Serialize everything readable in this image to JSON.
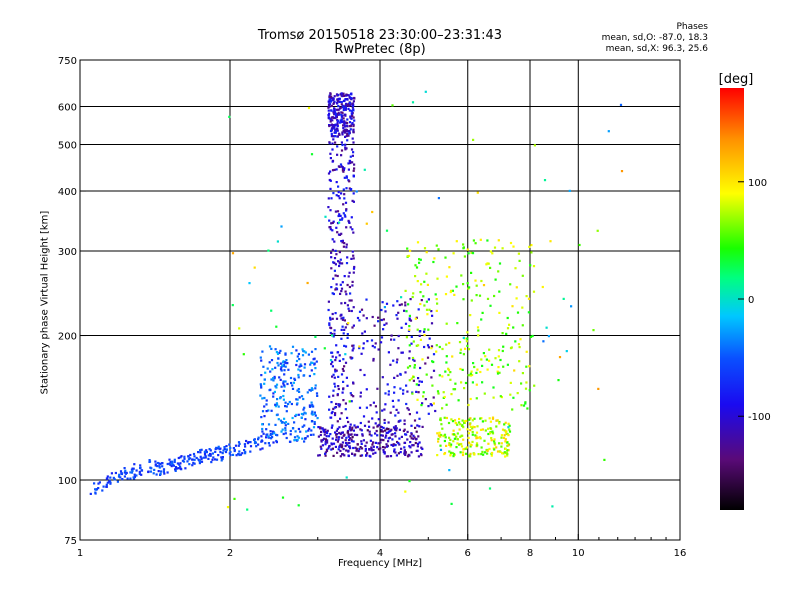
{
  "chart_data": {
    "type": "scatter",
    "title": "Tromsø 20150518 23:30:00–23:31:43",
    "subtitle": "RwPretec (8p)",
    "stats": {
      "heading": "Phases",
      "line1": "mean, sd,O: -87.0, 18.3",
      "line2": "mean, sd,X:  96.3, 25.6"
    },
    "xlabel": "Frequency [MHz]",
    "ylabel": "Stationary phase Virtual Height [km]",
    "x_scale": "log",
    "y_scale": "log",
    "xlim": [
      1,
      16
    ],
    "ylim": [
      75,
      750
    ],
    "x_ticks": [
      1,
      2,
      4,
      6,
      8,
      10,
      16
    ],
    "x_tick_labels": [
      "1",
      "2",
      "4",
      "6",
      "8",
      "10",
      "16"
    ],
    "y_ticks": [
      75,
      100,
      200,
      300,
      400,
      500,
      600,
      750
    ],
    "y_tick_labels": [
      "75",
      "100",
      "200",
      "300",
      "400",
      "500",
      "600",
      "750"
    ],
    "grid": true,
    "colorbar": {
      "label": "[deg]",
      "range": [
        -180,
        180
      ],
      "ticks": [
        100,
        0,
        -100
      ],
      "tick_labels": [
        "100",
        "0",
        "-100"
      ],
      "stops": [
        "#000000",
        "#5a0a78",
        "#1a0af0",
        "#0a50ff",
        "#00c8ff",
        "#00ff80",
        "#19ff00",
        "#ffff00",
        "#ff9000",
        "#ff0000"
      ]
    },
    "series": [
      {
        "kind": "trace",
        "color_value": -70,
        "x": [
          1.05,
          1.15,
          1.25,
          1.35,
          1.45,
          1.55,
          1.65,
          1.75,
          1.85,
          1.95,
          2.1,
          2.3,
          2.5
        ],
        "y": [
          95,
          100,
          103,
          107,
          106,
          108,
          110,
          112,
          113,
          114,
          117,
          120,
          124
        ]
      },
      {
        "kind": "cluster",
        "color_value": -55,
        "x_range": [
          2.3,
          3.0
        ],
        "y_range": [
          120,
          190
        ],
        "count": 260
      },
      {
        "kind": "column",
        "color_value": -110,
        "x_range": [
          3.15,
          3.55
        ],
        "y_range": [
          115,
          640
        ],
        "count": 600
      },
      {
        "kind": "cluster",
        "color_value": -120,
        "x_range": [
          3.0,
          4.9
        ],
        "y_range": [
          112,
          130
        ],
        "count": 280
      },
      {
        "kind": "cluster",
        "color_value": -110,
        "x_range": [
          3.6,
          5.2
        ],
        "y_range": [
          130,
          240
        ],
        "count": 170
      },
      {
        "kind": "cluster",
        "color_value": 90,
        "x_range": [
          5.2,
          7.3
        ],
        "y_range": [
          112,
          135
        ],
        "count": 220
      },
      {
        "kind": "cluster",
        "color_value": 80,
        "x_range": [
          4.5,
          8.2
        ],
        "y_range": [
          140,
          320
        ],
        "count": 280
      },
      {
        "kind": "sparse",
        "color_value": 40,
        "x_range": [
          1.9,
          13.0
        ],
        "y_range": [
          85,
          650
        ],
        "count": 80
      }
    ]
  }
}
